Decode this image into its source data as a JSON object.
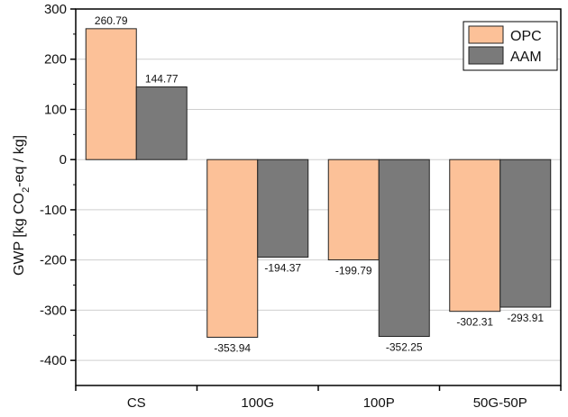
{
  "chart_data": {
    "type": "bar",
    "categories": [
      "CS",
      "100G",
      "100P",
      "50G-50P"
    ],
    "series": [
      {
        "name": "OPC",
        "values": [
          260.79,
          -353.94,
          -199.79,
          -302.31
        ],
        "color": "#fcc198",
        "labels": [
          "260.79",
          "-353.94",
          "-199.79",
          "-302.31"
        ]
      },
      {
        "name": "AAM",
        "values": [
          144.77,
          -194.37,
          -352.25,
          -293.91
        ],
        "color": "#7a7a7a",
        "labels": [
          "144.77",
          "-194.37",
          "-352.25",
          "-293.91"
        ]
      }
    ],
    "ylabel_parts": {
      "before": "GWP [kg CO",
      "sub": "2",
      "after": "-eq / kg]"
    },
    "ylim": [
      -450,
      300
    ],
    "yticks": [
      -400,
      -300,
      -200,
      -100,
      0,
      100,
      200,
      300
    ],
    "grid": true,
    "legend_position": "top-right"
  }
}
